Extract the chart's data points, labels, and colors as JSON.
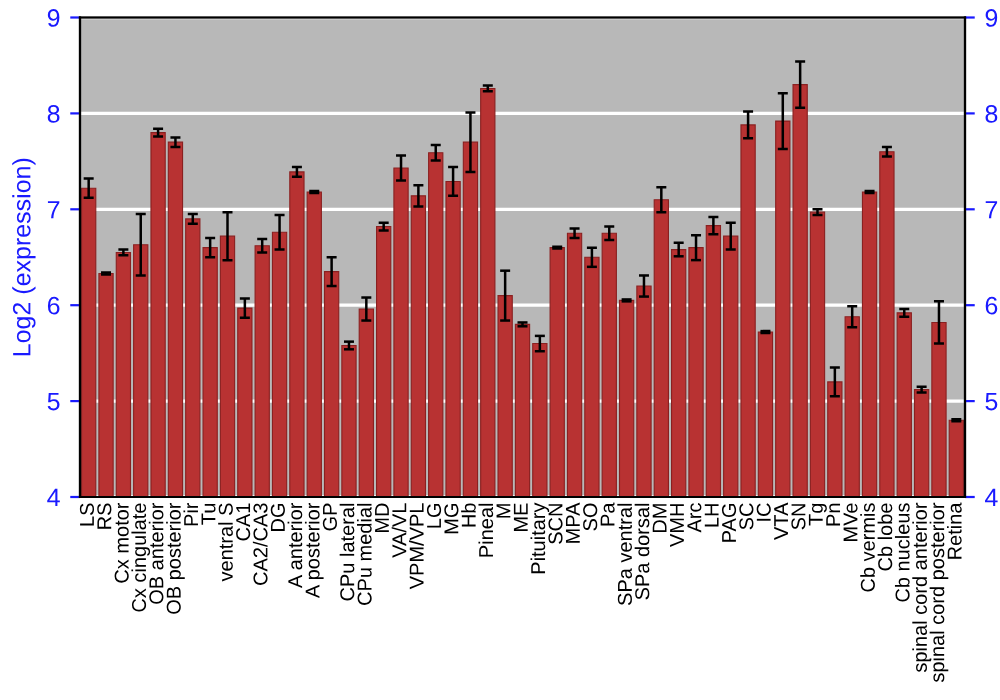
{
  "chart_data": {
    "type": "bar",
    "ylabel": "Log2 (expression)",
    "categories": [
      "LS",
      "RS",
      "Cx motor",
      "Cx cingulate",
      "OB anterior",
      "OB posterior",
      "Pir",
      "Tu",
      "ventral S",
      "CA1",
      "CA2/CA3",
      "DG",
      "A anterior",
      "A posterior",
      "GP",
      "CPu lateral",
      "CPu medial",
      "MD",
      "VA/VL",
      "VPM/VPL",
      "LG",
      "MG",
      "Hb",
      "Pineal",
      "M",
      "ME",
      "Pituitary",
      "SCN",
      "MPA",
      "SO",
      "Pa",
      "SPa ventral",
      "SPa dorsal",
      "DM",
      "VMH",
      "Arc",
      "LH",
      "PAG",
      "SC",
      "IC",
      "VTA",
      "SN",
      "Tg",
      "Pn",
      "MVe",
      "Cb vermis",
      "Cb lobe",
      "Cb nucleus",
      "spinal cord anterior",
      "spinal cord posterior",
      "Retina"
    ],
    "values": [
      7.22,
      6.33,
      6.55,
      6.63,
      7.8,
      7.7,
      6.9,
      6.6,
      6.72,
      5.97,
      6.62,
      6.76,
      7.39,
      7.18,
      6.35,
      5.58,
      5.96,
      6.82,
      7.43,
      7.14,
      7.59,
      7.29,
      7.7,
      8.26,
      6.1,
      5.8,
      5.6,
      6.6,
      6.75,
      6.5,
      6.75,
      6.05,
      6.2,
      7.1,
      6.58,
      6.6,
      6.83,
      6.72,
      7.88,
      5.72,
      7.92,
      8.3,
      6.97,
      5.2,
      5.88,
      7.18,
      7.6,
      5.92,
      5.12,
      5.82,
      4.8
    ],
    "errors": [
      0.1,
      0.01,
      0.03,
      0.32,
      0.04,
      0.05,
      0.05,
      0.1,
      0.25,
      0.1,
      0.07,
      0.18,
      0.05,
      0.01,
      0.15,
      0.04,
      0.12,
      0.04,
      0.13,
      0.11,
      0.08,
      0.15,
      0.31,
      0.03,
      0.26,
      0.02,
      0.08,
      0.01,
      0.05,
      0.1,
      0.07,
      0.01,
      0.11,
      0.13,
      0.07,
      0.13,
      0.09,
      0.14,
      0.14,
      0.01,
      0.29,
      0.24,
      0.03,
      0.15,
      0.11,
      0.01,
      0.05,
      0.04,
      0.03,
      0.22,
      0.01
    ],
    "color": "#b83232",
    "ylim": [
      4,
      9
    ],
    "yticks": [
      4,
      5,
      6,
      7,
      8,
      9
    ],
    "y2lim": [
      4,
      9
    ],
    "y2ticks": [
      4,
      5,
      6,
      7,
      8,
      9
    ],
    "grid": "y"
  }
}
